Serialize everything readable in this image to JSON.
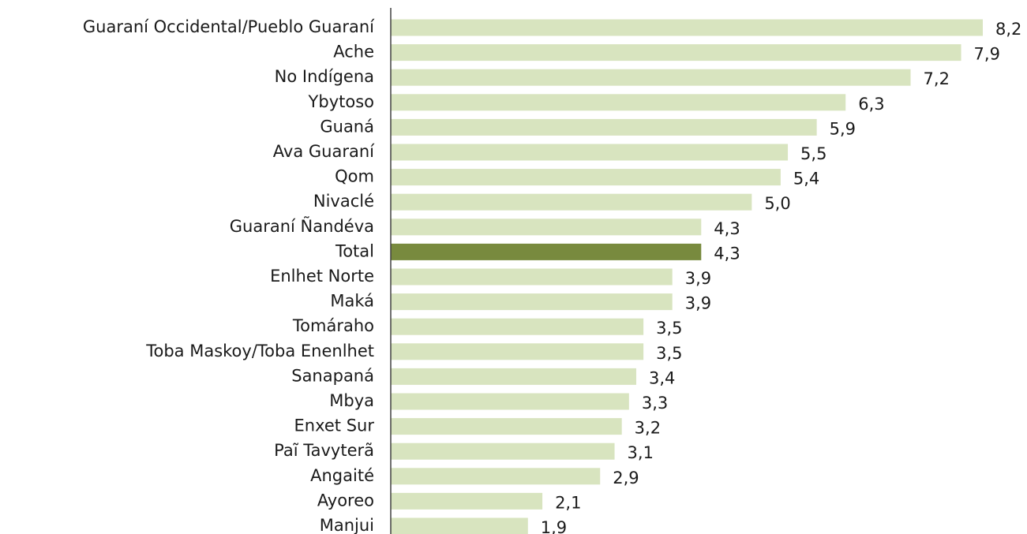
{
  "chart_data": {
    "type": "bar",
    "orientation": "horizontal",
    "categories": [
      "Guaraní Occidental/Pueblo Guaraní",
      "Ache",
      "No Indígena",
      "Ybytoso",
      "Guaná",
      "Ava Guaraní",
      "Qom",
      "Nivaclé",
      "Guaraní Ñandéva",
      "Total",
      "Enlhet Norte",
      "Maká",
      "Tomáraho",
      "Toba Maskoy/Toba Enenlhet",
      "Sanapaná",
      "Mbya",
      "Enxet Sur",
      "Paĩ Tavyterã",
      "Angaité",
      "Ayoreo",
      "Manjui"
    ],
    "values": [
      8.2,
      7.9,
      7.2,
      6.3,
      5.9,
      5.5,
      5.4,
      5.0,
      4.3,
      4.3,
      3.9,
      3.9,
      3.5,
      3.5,
      3.4,
      3.3,
      3.2,
      3.1,
      2.9,
      2.1,
      1.9
    ],
    "value_labels": [
      "8,2",
      "7,9",
      "7,2",
      "6,3",
      "5,9",
      "5,5",
      "5,4",
      "5,0",
      "4,3",
      "4,3",
      "3,9",
      "3,9",
      "3,5",
      "3,5",
      "3,4",
      "3,3",
      "3,2",
      "3,1",
      "2,9",
      "2,1",
      "1,9"
    ],
    "colors": [
      "#d8e4bf",
      "#d8e4bf",
      "#d8e4bf",
      "#d8e4bf",
      "#d8e4bf",
      "#d8e4bf",
      "#d8e4bf",
      "#d8e4bf",
      "#d8e4bf",
      "#788a3e",
      "#d8e4bf",
      "#d8e4bf",
      "#d8e4bf",
      "#d8e4bf",
      "#d8e4bf",
      "#d8e4bf",
      "#d8e4bf",
      "#d8e4bf",
      "#d8e4bf",
      "#d8e4bf",
      "#d8e4bf"
    ]
  }
}
